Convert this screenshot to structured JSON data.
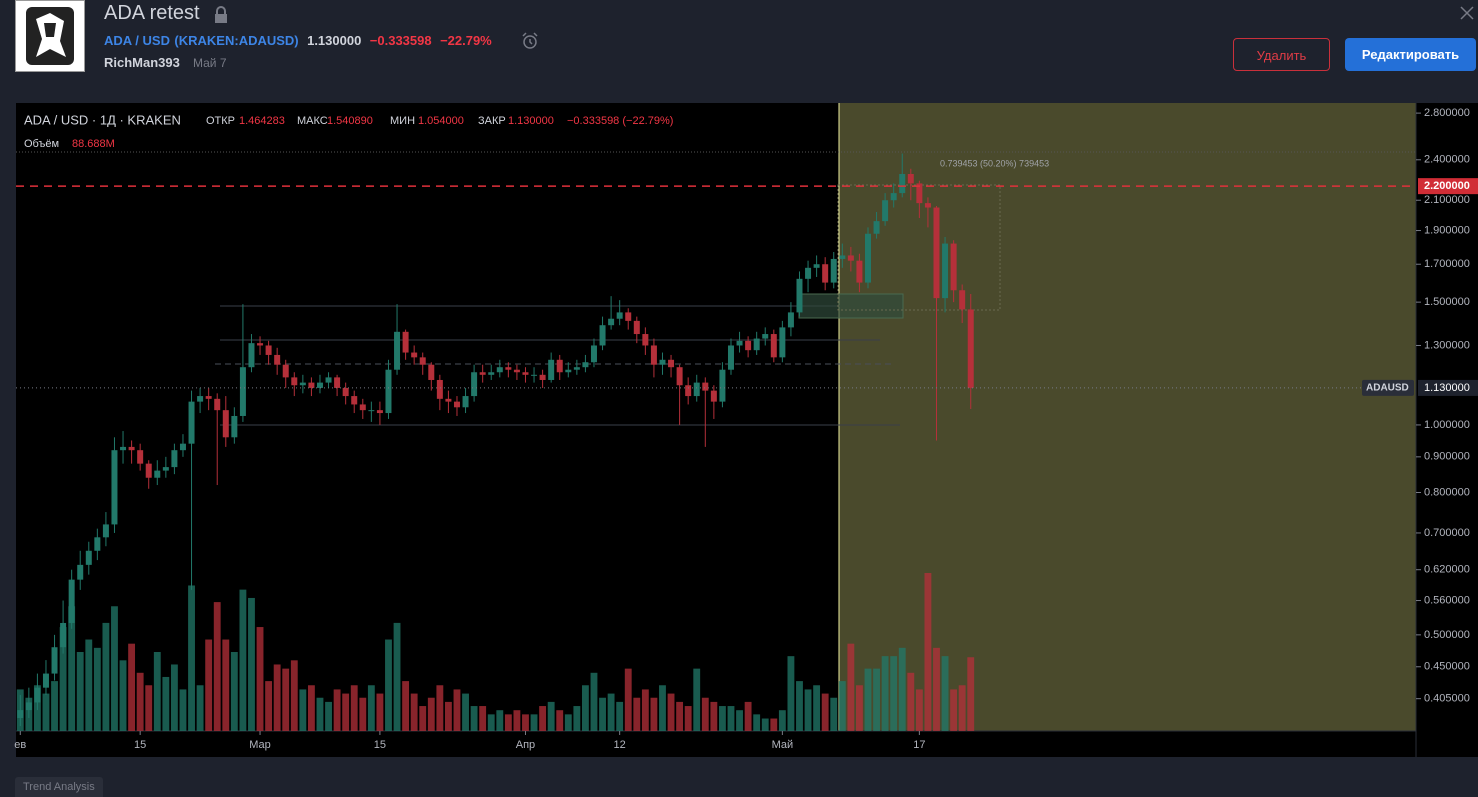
{
  "header": {
    "title": "ADA retest",
    "symbol": "ADA / USD",
    "exchange": "(KRAKEN:ADAUSD)",
    "price": "1.130000",
    "change": "−0.333598",
    "change_percent": "−22.79%",
    "author": "RichMan393",
    "date": "Май 7",
    "delete_button": "Удалить",
    "edit_button": "Редактировать",
    "tab": "Trend Analysis"
  },
  "legend": {
    "instrument": "ADA / USD · 1Д · KRAKEN",
    "open_label": "ОТКР",
    "open": "1.464283",
    "high_label": "МАКС",
    "high": "1.540890",
    "low_label": "МИН",
    "low": "1.054000",
    "close_label": "ЗАКР",
    "close": "1.130000",
    "change": "−0.333598 (−22.79%)",
    "volume_label": "Объём",
    "volume": "88.688M"
  },
  "chart_data": {
    "type": "candlestick",
    "log": true,
    "up_color": "#22796a",
    "down_color": "#b5303a",
    "annotation": "0.739453 (50.20%) 739453",
    "xlim": [
      -0.5,
      163
    ],
    "xticks": [
      {
        "value": 0,
        "label": "ев"
      },
      {
        "value": 14,
        "label": "15"
      },
      {
        "value": 28,
        "label": "Мар"
      },
      {
        "value": 42,
        "label": "15"
      },
      {
        "value": 59,
        "label": "Апр"
      },
      {
        "value": 70,
        "label": "12"
      },
      {
        "value": 89,
        "label": "Май"
      },
      {
        "value": 105,
        "label": "17"
      }
    ],
    "ylim": [
      0.364,
      2.895
    ],
    "yticks": [
      {
        "value": 2.8,
        "label": "2.800000"
      },
      {
        "value": 2.4,
        "label": "2.400000"
      },
      {
        "value": 2.1,
        "label": "2.100000"
      },
      {
        "value": 1.9,
        "label": "1.900000"
      },
      {
        "value": 1.7,
        "label": "1.700000"
      },
      {
        "value": 1.5,
        "label": "1.500000"
      },
      {
        "value": 1.3,
        "label": "1.300000"
      },
      {
        "value": 1.0,
        "label": "1.000000"
      },
      {
        "value": 0.9,
        "label": "0.900000"
      },
      {
        "value": 0.8,
        "label": "0.800000"
      },
      {
        "value": 0.7,
        "label": "0.700000"
      },
      {
        "value": 0.62,
        "label": "0.620000"
      },
      {
        "value": 0.56,
        "label": "0.560000"
      },
      {
        "value": 0.5,
        "label": "0.500000"
      },
      {
        "value": 0.45,
        "label": "0.450000"
      },
      {
        "value": 0.405,
        "label": "0.405000"
      }
    ],
    "level": {
      "value": 2.2,
      "label": "2.200000"
    },
    "last_price": {
      "name": "ADAUSD",
      "value": 1.13,
      "label": "1.130000"
    },
    "open": [
      0.38,
      0.39,
      0.4,
      0.42,
      0.44,
      0.48,
      0.52,
      0.6,
      0.63,
      0.66,
      0.69,
      0.72,
      0.92,
      0.93,
      0.92,
      0.88,
      0.84,
      0.86,
      0.87,
      0.92,
      0.94,
      1.08,
      1.1,
      1.09,
      1.05,
      0.96,
      1.03,
      1.21,
      1.31,
      1.3,
      1.26,
      1.22,
      1.17,
      1.14,
      1.15,
      1.13,
      1.15,
      1.17,
      1.13,
      1.1,
      1.07,
      1.05,
      1.05,
      1.04,
      1.2,
      1.36,
      1.27,
      1.25,
      1.22,
      1.16,
      1.09,
      1.08,
      1.06,
      1.1,
      1.19,
      1.18,
      1.19,
      1.21,
      1.2,
      1.19,
      1.18,
      1.18,
      1.16,
      1.24,
      1.19,
      1.2,
      1.21,
      1.23,
      1.3,
      1.39,
      1.42,
      1.45,
      1.41,
      1.35,
      1.3,
      1.22,
      1.24,
      1.21,
      1.14,
      1.1,
      1.15,
      1.12,
      1.08,
      1.2,
      1.3,
      1.32,
      1.28,
      1.33,
      1.35,
      1.25,
      1.38,
      1.45,
      1.62,
      1.68,
      1.7,
      1.6,
      1.73,
      1.75,
      1.72,
      1.6,
      1.88,
      1.96,
      2.1,
      2.15,
      2.29,
      2.22,
      2.08,
      2.05,
      1.52,
      1.82,
      1.56,
      1.464283
    ],
    "high": [
      0.41,
      0.42,
      0.44,
      0.46,
      0.5,
      0.56,
      0.62,
      0.66,
      0.68,
      0.71,
      0.75,
      0.96,
      0.98,
      0.95,
      0.94,
      0.89,
      0.89,
      0.9,
      0.94,
      0.97,
      1.12,
      1.13,
      1.13,
      1.11,
      1.1,
      1.06,
      1.49,
      1.35,
      1.34,
      1.32,
      1.29,
      1.24,
      1.19,
      1.18,
      1.17,
      1.18,
      1.19,
      1.18,
      1.15,
      1.12,
      1.09,
      1.08,
      1.08,
      1.24,
      1.49,
      1.37,
      1.3,
      1.27,
      1.23,
      1.18,
      1.12,
      1.1,
      1.13,
      1.22,
      1.22,
      1.22,
      1.24,
      1.23,
      1.22,
      1.21,
      1.21,
      1.2,
      1.27,
      1.26,
      1.23,
      1.24,
      1.26,
      1.33,
      1.43,
      1.53,
      1.51,
      1.47,
      1.43,
      1.38,
      1.33,
      1.27,
      1.26,
      1.22,
      1.17,
      1.18,
      1.17,
      1.14,
      1.23,
      1.33,
      1.36,
      1.34,
      1.36,
      1.38,
      1.37,
      1.41,
      1.5,
      1.66,
      1.72,
      1.75,
      1.74,
      1.77,
      1.82,
      1.8,
      1.76,
      1.92,
      2.02,
      2.15,
      2.22,
      2.45,
      2.33,
      2.24,
      2.12,
      2.06,
      1.86,
      1.84,
      1.59,
      1.54089
    ],
    "low": [
      0.37,
      0.38,
      0.39,
      0.41,
      0.43,
      0.47,
      0.51,
      0.58,
      0.61,
      0.64,
      0.67,
      0.7,
      0.88,
      0.88,
      0.86,
      0.81,
      0.82,
      0.84,
      0.85,
      0.9,
      0.58,
      1.04,
      1.05,
      0.82,
      0.93,
      0.94,
      1.01,
      1.19,
      1.26,
      1.22,
      1.18,
      1.13,
      1.1,
      1.11,
      1.1,
      1.11,
      1.13,
      1.1,
      1.07,
      1.04,
      1.02,
      1.01,
      1.0,
      1.02,
      1.18,
      1.24,
      1.22,
      1.18,
      1.12,
      1.05,
      1.04,
      1.03,
      1.04,
      1.08,
      1.15,
      1.16,
      1.17,
      1.17,
      1.16,
      1.15,
      1.15,
      1.13,
      1.15,
      1.16,
      1.17,
      1.18,
      1.19,
      1.21,
      1.28,
      1.37,
      1.39,
      1.37,
      1.31,
      1.26,
      1.17,
      1.18,
      1.17,
      1.0,
      1.07,
      1.08,
      0.93,
      1.02,
      1.06,
      1.18,
      1.27,
      1.25,
      1.26,
      1.3,
      1.23,
      1.23,
      1.34,
      1.43,
      1.55,
      1.63,
      1.56,
      1.57,
      1.68,
      1.66,
      1.55,
      1.57,
      1.85,
      1.93,
      2.05,
      2.12,
      2.1,
      1.98,
      1.92,
      0.95,
      1.45,
      1.5,
      1.4,
      1.054
    ],
    "close": [
      0.39,
      0.4,
      0.42,
      0.44,
      0.48,
      0.52,
      0.6,
      0.63,
      0.66,
      0.69,
      0.72,
      0.92,
      0.93,
      0.92,
      0.88,
      0.84,
      0.86,
      0.87,
      0.92,
      0.94,
      1.08,
      1.1,
      1.09,
      1.05,
      0.96,
      1.03,
      1.21,
      1.31,
      1.3,
      1.26,
      1.22,
      1.17,
      1.14,
      1.15,
      1.13,
      1.15,
      1.17,
      1.13,
      1.1,
      1.07,
      1.05,
      1.05,
      1.04,
      1.2,
      1.36,
      1.27,
      1.25,
      1.22,
      1.16,
      1.09,
      1.08,
      1.06,
      1.1,
      1.19,
      1.18,
      1.19,
      1.21,
      1.2,
      1.19,
      1.18,
      1.18,
      1.16,
      1.24,
      1.19,
      1.2,
      1.21,
      1.23,
      1.3,
      1.39,
      1.42,
      1.45,
      1.41,
      1.35,
      1.3,
      1.22,
      1.24,
      1.21,
      1.14,
      1.1,
      1.15,
      1.12,
      1.08,
      1.2,
      1.3,
      1.32,
      1.28,
      1.33,
      1.35,
      1.25,
      1.38,
      1.45,
      1.62,
      1.68,
      1.7,
      1.6,
      1.73,
      1.75,
      1.72,
      1.6,
      1.88,
      1.96,
      2.1,
      2.15,
      2.29,
      2.22,
      2.08,
      2.05,
      1.52,
      1.82,
      1.56,
      1.464283,
      1.13
    ],
    "volume": [
      50,
      40,
      55,
      45,
      60,
      125,
      150,
      95,
      110,
      100,
      130,
      150,
      85,
      105,
      70,
      55,
      95,
      65,
      80,
      50,
      175,
      55,
      110,
      155,
      110,
      95,
      170,
      160,
      125,
      60,
      80,
      75,
      85,
      50,
      55,
      40,
      35,
      50,
      45,
      55,
      40,
      55,
      45,
      110,
      130,
      60,
      45,
      30,
      40,
      55,
      35,
      50,
      45,
      30,
      30,
      20,
      25,
      20,
      25,
      20,
      20,
      30,
      35,
      25,
      20,
      30,
      55,
      70,
      40,
      45,
      35,
      75,
      40,
      50,
      40,
      55,
      45,
      35,
      30,
      75,
      40,
      35,
      30,
      30,
      25,
      35,
      20,
      15,
      15,
      25,
      90,
      60,
      50,
      55,
      45,
      40,
      60,
      105,
      55,
      75,
      75,
      90,
      90,
      100,
      70,
      50,
      190,
      100,
      90,
      50,
      55,
      88.688
    ]
  }
}
